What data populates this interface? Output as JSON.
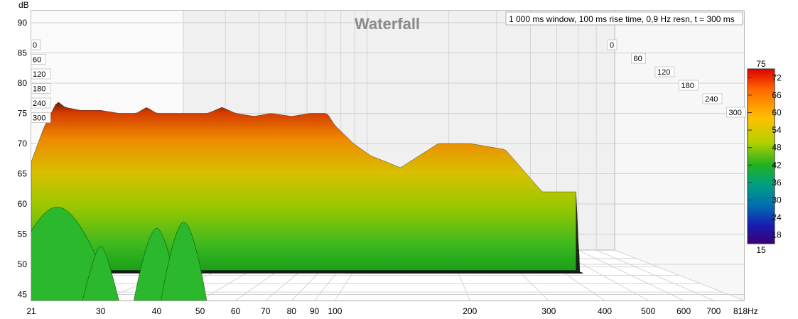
{
  "chart_data": {
    "type": "waterfall",
    "title": "Waterfall",
    "settings_note": "1 000 ms window, 100 ms rise time,  0,9 Hz resn, t = 300 ms",
    "ylabel": "dB",
    "ylim": [
      44,
      92
    ],
    "yticks": [
      "90",
      "85",
      "80",
      "75",
      "70",
      "65",
      "60",
      "55",
      "50",
      "45"
    ],
    "xlim": [
      21,
      818
    ],
    "x_scale": "log",
    "xticks": [
      "21",
      "30",
      "40",
      "50",
      "60",
      "70",
      "80",
      "90",
      "100",
      "200",
      "300",
      "400",
      "500",
      "600",
      "700",
      "818Hz"
    ],
    "time_labels": [
      "0",
      "60",
      "120",
      "180",
      "240",
      "300"
    ],
    "time_unit_ms": [
      0,
      300
    ],
    "colorbar": {
      "max_label": "75",
      "min_label": "15",
      "ticks": [
        "72",
        "66",
        "60",
        "54",
        "48",
        "42",
        "36",
        "30",
        "24",
        "18"
      ],
      "colors": [
        "#e00000",
        "#ff6a00",
        "#ffc000",
        "#b4d000",
        "#22b022",
        "#00a080",
        "#0070b0",
        "#1a1ab0",
        "#3a0070"
      ]
    },
    "front_slice_hz_db": [
      [
        21,
        67
      ],
      [
        22.5,
        73
      ],
      [
        24,
        77
      ],
      [
        25,
        76
      ],
      [
        27,
        75.5
      ],
      [
        30,
        75.5
      ],
      [
        33,
        75
      ],
      [
        36,
        75
      ],
      [
        38,
        76
      ],
      [
        40,
        75
      ],
      [
        44,
        75
      ],
      [
        48,
        75
      ],
      [
        52,
        75
      ],
      [
        56,
        76
      ],
      [
        60,
        75
      ],
      [
        66,
        74.5
      ],
      [
        72,
        75
      ],
      [
        80,
        74.5
      ],
      [
        88,
        75
      ],
      [
        96,
        75
      ],
      [
        100,
        73
      ],
      [
        110,
        70
      ],
      [
        120,
        68
      ],
      [
        140,
        66
      ],
      [
        170,
        70
      ],
      [
        200,
        70
      ],
      [
        240,
        69
      ],
      [
        290,
        62
      ]
    ]
  }
}
